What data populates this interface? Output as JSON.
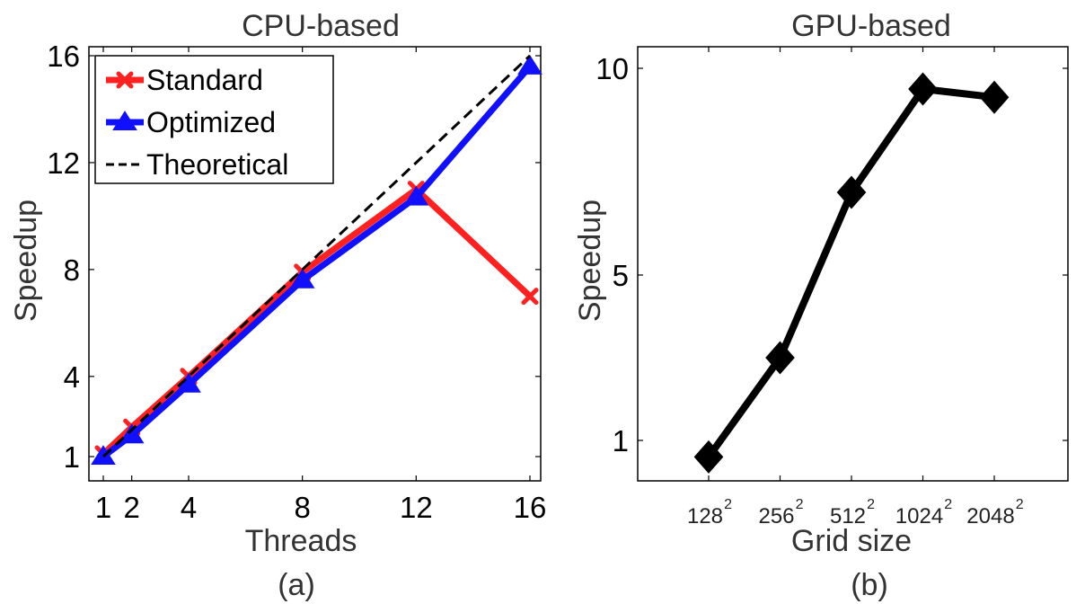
{
  "chart_data": [
    {
      "type": "line",
      "title": "CPU-based",
      "xlabel": "Threads",
      "ylabel": "Speedup",
      "caption": "(a)",
      "xlim": [
        0,
        16.5
      ],
      "ylim": [
        0,
        16
      ],
      "xticks": [
        1,
        2,
        4,
        8,
        12,
        16
      ],
      "yticks": [
        1,
        4,
        8,
        12,
        16
      ],
      "legend_position": "top-left",
      "series": [
        {
          "name": "Standard",
          "color": "#ff2020",
          "marker": "x",
          "x": [
            1,
            2,
            4,
            8,
            12,
            16
          ],
          "y": [
            1.1,
            2.1,
            4.0,
            7.9,
            11.0,
            7.0
          ]
        },
        {
          "name": "Optimized",
          "color": "#1010ff",
          "marker": "triangle",
          "x": [
            1,
            2,
            4,
            8,
            12,
            16
          ],
          "y": [
            1.0,
            1.8,
            3.7,
            7.6,
            10.7,
            15.6
          ]
        },
        {
          "name": "Theoretical",
          "color": "#000000",
          "marker": "none",
          "dashed": true,
          "x": [
            1,
            16
          ],
          "y": [
            1,
            16
          ]
        }
      ]
    },
    {
      "type": "line",
      "title": "GPU-based",
      "xlabel": "Grid size",
      "ylabel": "Speedup",
      "caption": "(b)",
      "ylim": [
        0,
        10.5
      ],
      "yticks": [
        1,
        5,
        10
      ],
      "categories": [
        {
          "base": "128",
          "exp": "2"
        },
        {
          "base": "256",
          "exp": "2"
        },
        {
          "base": "512",
          "exp": "2"
        },
        {
          "base": "1024",
          "exp": "2"
        },
        {
          "base": "2048",
          "exp": "2"
        }
      ],
      "series": [
        {
          "color": "#000000",
          "marker": "diamond",
          "values": [
            0.6,
            3.0,
            7.0,
            9.5,
            9.3
          ]
        }
      ]
    }
  ]
}
